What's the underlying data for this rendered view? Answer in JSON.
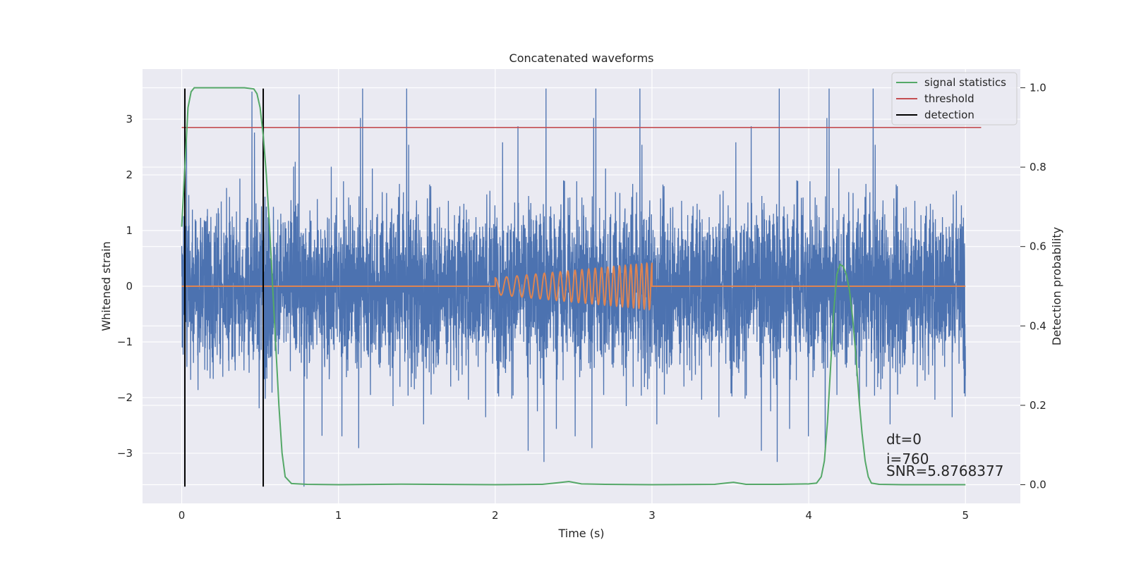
{
  "chart_data": {
    "type": "line",
    "title": "Concatenated waveforms",
    "xlabel": "Time (s)",
    "ylabel_left": "Whitened strain",
    "ylabel_right": "Detection probability",
    "xlim": [
      -0.25,
      5.35
    ],
    "ylim_left": [
      -3.9,
      3.9
    ],
    "ylim_right": [
      -0.047,
      1.047
    ],
    "x_ticks": [
      0,
      1,
      2,
      3,
      4,
      5
    ],
    "x_tick_labels": [
      "0",
      "1",
      "2",
      "3",
      "4",
      "5"
    ],
    "y_left_ticks": [
      -3,
      -2,
      -1,
      0,
      1,
      2,
      3
    ],
    "y_left_tick_labels": [
      "−3",
      "−2",
      "−1",
      "0",
      "1",
      "2",
      "3"
    ],
    "y_right_ticks": [
      0.0,
      0.2,
      0.4,
      0.6,
      0.8,
      1.0
    ],
    "y_right_tick_labels": [
      "0.0",
      "0.2",
      "0.4",
      "0.6",
      "0.8",
      "1.0"
    ],
    "grid": true,
    "legend_position": "top-right",
    "series": [
      {
        "name": "",
        "kind": "whitened_strain_noise",
        "axis": "left",
        "color": "#4c72b0",
        "x_range": [
          0.0,
          5.0
        ],
        "envelope_typical": [
          -1.7,
          2.2
        ],
        "envelope_extreme": [
          -3.6,
          3.55
        ]
      },
      {
        "name": "",
        "kind": "injected_chirp",
        "axis": "left",
        "color": "#dd8452",
        "x": [
          0.0,
          2.0,
          2.0,
          3.0,
          3.0,
          5.0
        ],
        "amplitude_start": 0.15,
        "amplitude_end": 0.42,
        "chirp_start": 2.0,
        "chirp_end": 3.0,
        "cycles": 22
      },
      {
        "name": "signal statistics",
        "axis": "right",
        "color": "#55a868",
        "x": [
          0.0,
          0.02,
          0.04,
          0.06,
          0.08,
          0.12,
          0.2,
          0.3,
          0.4,
          0.46,
          0.48,
          0.5,
          0.52,
          0.54,
          0.56,
          0.58,
          0.6,
          0.62,
          0.64,
          0.66,
          0.7,
          0.8,
          1.0,
          1.4,
          2.0,
          2.3,
          2.4,
          2.47,
          2.55,
          2.7,
          3.0,
          3.4,
          3.47,
          3.52,
          3.6,
          3.8,
          4.0,
          4.05,
          4.08,
          4.1,
          4.12,
          4.14,
          4.16,
          4.18,
          4.2,
          4.22,
          4.24,
          4.26,
          4.28,
          4.3,
          4.32,
          4.34,
          4.36,
          4.38,
          4.4,
          4.45,
          4.6,
          5.0
        ],
        "values": [
          0.65,
          0.8,
          0.95,
          0.99,
          1.0,
          1.0,
          1.0,
          1.0,
          1.0,
          0.997,
          0.985,
          0.95,
          0.88,
          0.78,
          0.65,
          0.5,
          0.35,
          0.2,
          0.08,
          0.02,
          0.003,
          0.001,
          0.0,
          0.0015,
          0.0,
          0.001,
          0.005,
          0.008,
          0.002,
          0.001,
          0.0,
          0.001,
          0.004,
          0.006,
          0.001,
          0.001,
          0.002,
          0.004,
          0.02,
          0.06,
          0.16,
          0.3,
          0.44,
          0.53,
          0.555,
          0.55,
          0.53,
          0.49,
          0.42,
          0.33,
          0.22,
          0.13,
          0.06,
          0.02,
          0.004,
          0.001,
          0.0,
          0.0
        ]
      },
      {
        "name": "threshold",
        "axis": "right",
        "color": "#c44e52",
        "x": [
          0.0,
          5.1
        ],
        "values": [
          0.9,
          0.9
        ]
      },
      {
        "name": "detection",
        "axis": "left",
        "color": "#000000",
        "x": [
          0.02,
          0.52
        ],
        "y_range": [
          -3.6,
          3.55
        ]
      }
    ],
    "annotations": [
      "dt=0",
      "i=760",
      "SNR=5.8768377"
    ]
  }
}
